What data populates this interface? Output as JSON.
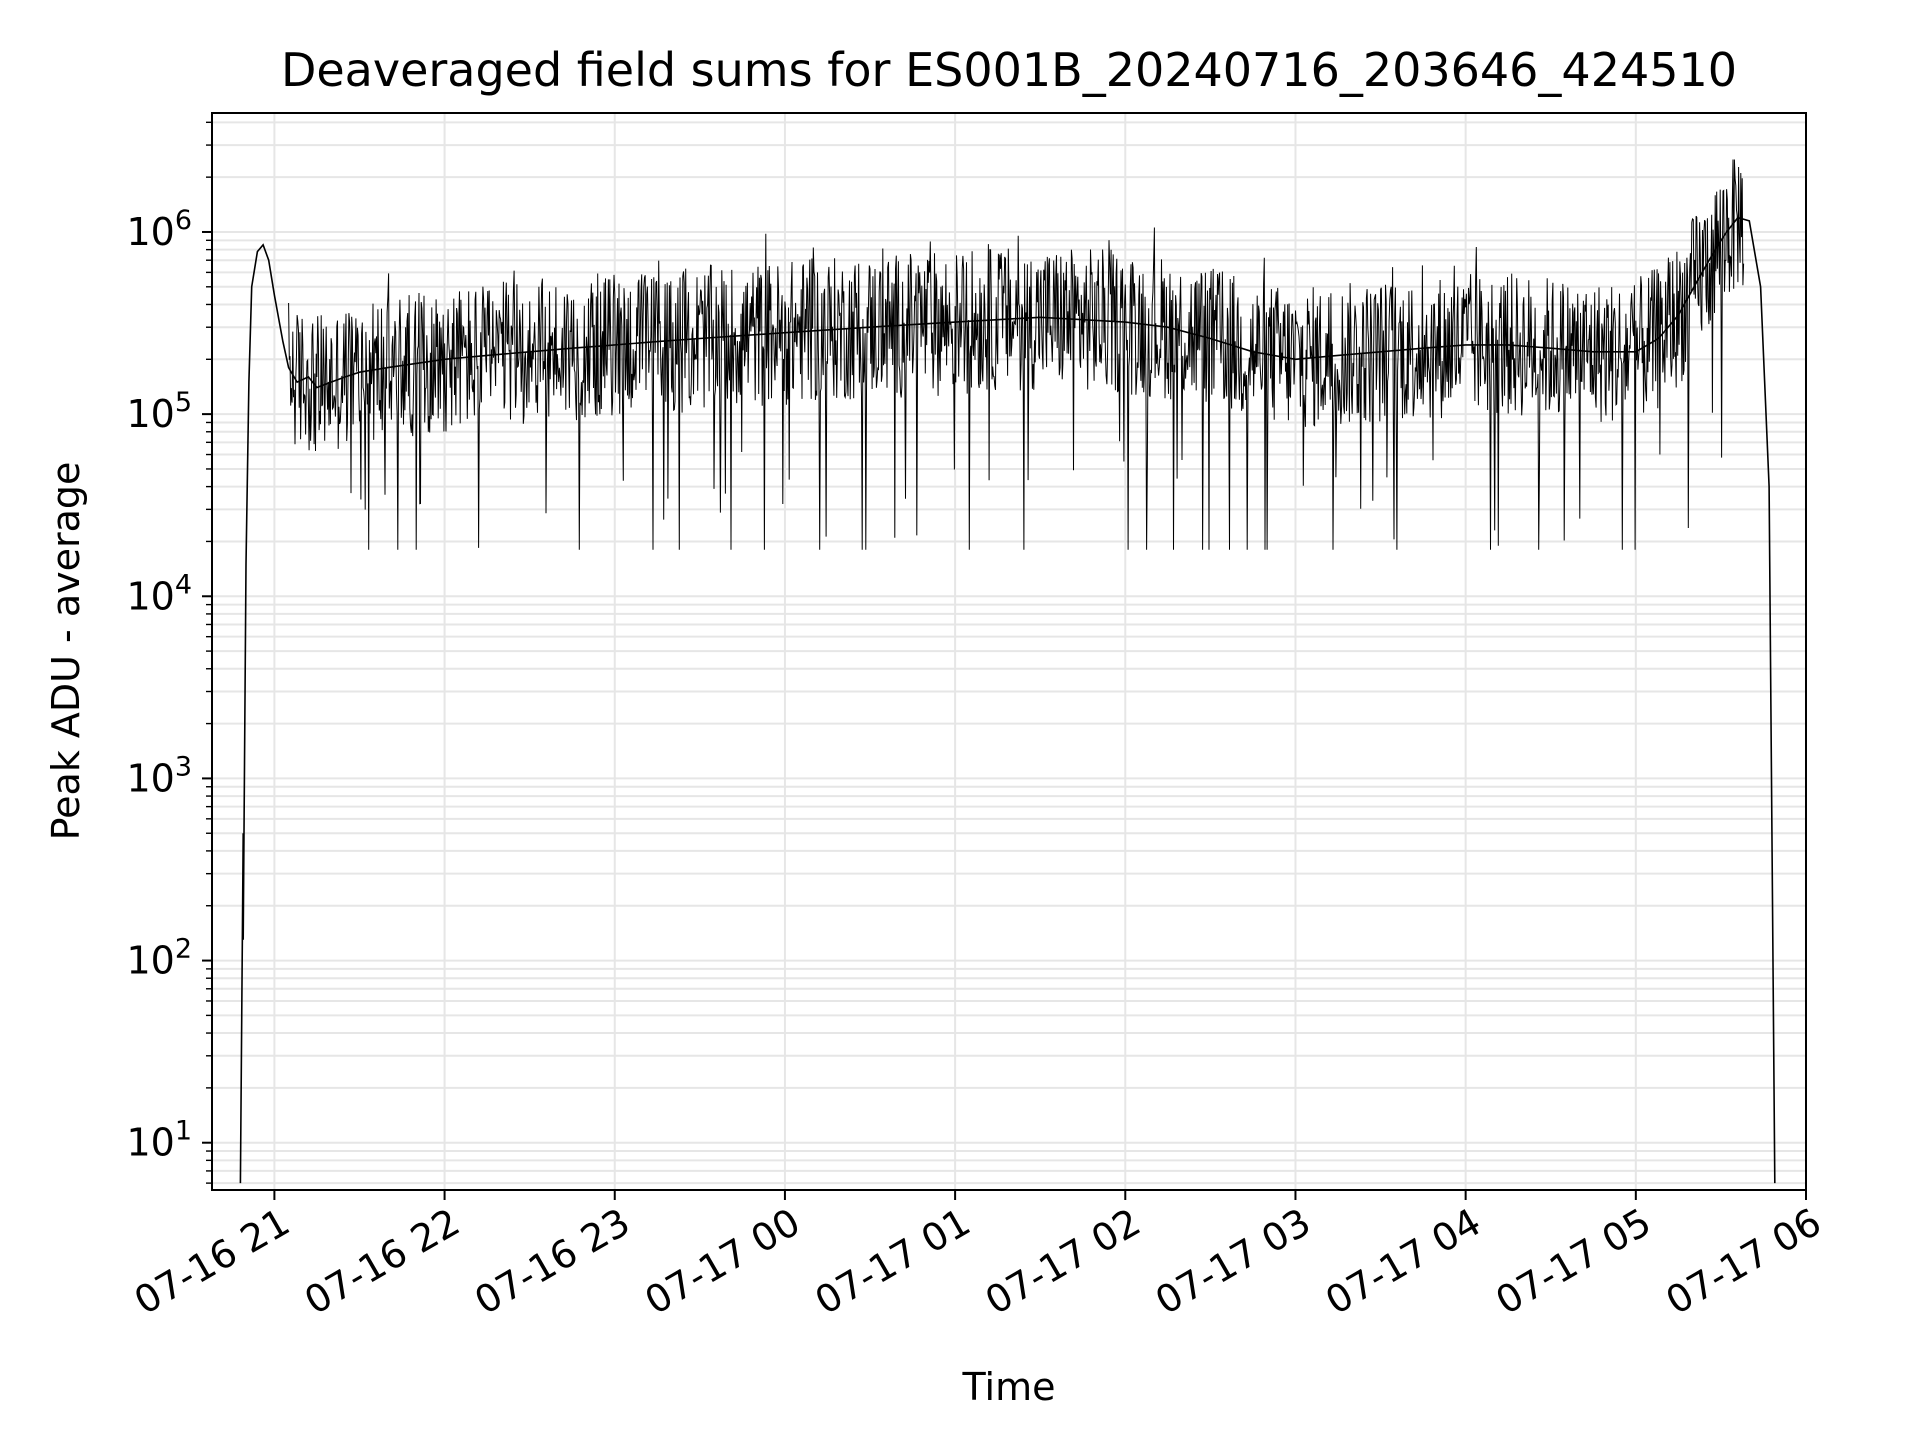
{
  "chart_data": {
    "type": "line",
    "title": "Deaveraged field sums for ES001B_20240716_203646_424510",
    "xlabel": "Time",
    "ylabel": "Peak ADU - average",
    "yscale": "log",
    "ylim": [
      5.5,
      4500000
    ],
    "xlim": [
      "2024-07-16 20:38",
      "2024-07-17 06:00"
    ],
    "x_tick_labels": [
      "07-16 21",
      "07-16 22",
      "07-16 23",
      "07-17 00",
      "07-17 01",
      "07-17 02",
      "07-17 03",
      "07-17 04",
      "07-17 05",
      "07-17 06"
    ],
    "x_tick_values": [
      "2024-07-16 21:00",
      "2024-07-16 22:00",
      "2024-07-16 23:00",
      "2024-07-17 00:00",
      "2024-07-17 01:00",
      "2024-07-17 02:00",
      "2024-07-17 03:00",
      "2024-07-17 04:00",
      "2024-07-17 05:00",
      "2024-07-17 06:00"
    ],
    "y_tick_values": [
      10,
      100,
      1000,
      10000,
      100000,
      1000000
    ],
    "y_tick_labels": [
      {
        "base": "10",
        "exp": "1"
      },
      {
        "base": "10",
        "exp": "2"
      },
      {
        "base": "10",
        "exp": "3"
      },
      {
        "base": "10",
        "exp": "4"
      },
      {
        "base": "10",
        "exp": "5"
      },
      {
        "base": "10",
        "exp": "6"
      }
    ],
    "grid": true,
    "line_color": "#000000",
    "grid_color": "#e6e6e6",
    "series": [
      {
        "name": "",
        "x": [
          "2024-07-16 20:48",
          "2024-07-16 20:49",
          "2024-07-16 20:49",
          "2024-07-16 20:50",
          "2024-07-16 20:51",
          "2024-07-16 20:52",
          "2024-07-16 20:54",
          "2024-07-16 20:56",
          "2024-07-16 20:58",
          "2024-07-16 21:00",
          "2024-07-16 21:03",
          "2024-07-16 21:05",
          "2024-07-16 21:08",
          "2024-07-16 21:12",
          "2024-07-16 21:15",
          "2024-07-16 21:20",
          "2024-07-16 21:25",
          "2024-07-16 21:30",
          "2024-07-16 21:40",
          "2024-07-16 21:50",
          "2024-07-16 22:00",
          "2024-07-16 22:15",
          "2024-07-16 22:30",
          "2024-07-16 22:45",
          "2024-07-16 23:00",
          "2024-07-16 23:15",
          "2024-07-16 23:30",
          "2024-07-16 23:45",
          "2024-07-17 00:00",
          "2024-07-17 00:15",
          "2024-07-17 00:30",
          "2024-07-17 00:45",
          "2024-07-17 01:00",
          "2024-07-17 01:15",
          "2024-07-17 01:30",
          "2024-07-17 01:45",
          "2024-07-17 02:00",
          "2024-07-17 02:15",
          "2024-07-17 02:30",
          "2024-07-17 02:45",
          "2024-07-17 03:00",
          "2024-07-17 03:15",
          "2024-07-17 03:30",
          "2024-07-17 03:45",
          "2024-07-17 04:00",
          "2024-07-17 04:15",
          "2024-07-17 04:30",
          "2024-07-17 04:45",
          "2024-07-17 05:00",
          "2024-07-17 05:08",
          "2024-07-17 05:15",
          "2024-07-17 05:22",
          "2024-07-17 05:28",
          "2024-07-17 05:32",
          "2024-07-17 05:36",
          "2024-07-17 05:40",
          "2024-07-17 05:44",
          "2024-07-17 05:47",
          "2024-07-17 05:49"
        ],
        "y": [
          6,
          500,
          130,
          15000,
          150000,
          500000,
          780000,
          850000,
          700000,
          450000,
          250000,
          180000,
          150000,
          160000,
          140000,
          150000,
          160000,
          170000,
          180000,
          190000,
          200000,
          210000,
          220000,
          230000,
          240000,
          250000,
          260000,
          270000,
          280000,
          290000,
          300000,
          310000,
          320000,
          330000,
          340000,
          330000,
          320000,
          300000,
          260000,
          220000,
          200000,
          210000,
          220000,
          230000,
          240000,
          240000,
          230000,
          220000,
          220000,
          260000,
          350000,
          550000,
          800000,
          1000000,
          1200000,
          1150000,
          500000,
          40000,
          6
        ]
      }
    ],
    "noise_band": {
      "from": "2024-07-16 21:05",
      "to": "2024-07-17 05:38",
      "spikes_down_to": 18000,
      "spikes_up_to": 2500000
    }
  }
}
